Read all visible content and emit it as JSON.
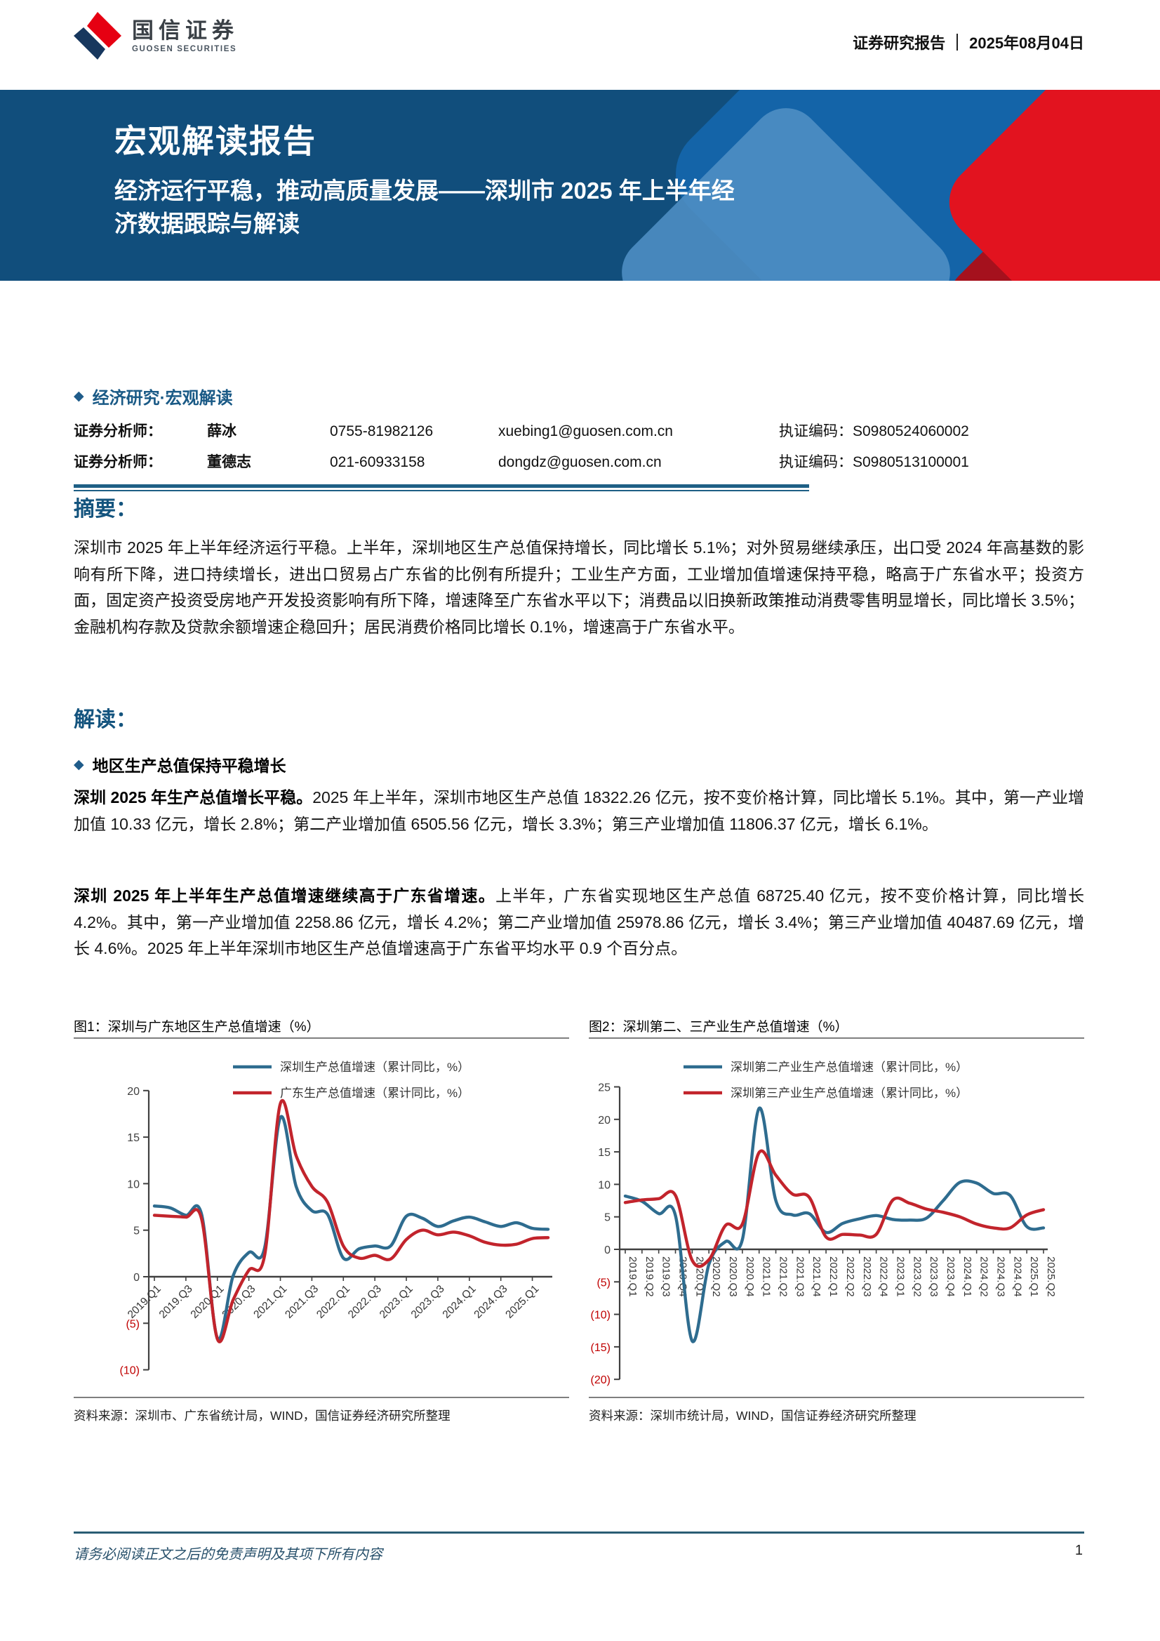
{
  "header": {
    "brand_cn": "国信证券",
    "brand_en": "GUOSEN SECURITIES",
    "report_type": "证券研究报告",
    "date": "2025年08月04日"
  },
  "banner": {
    "title": "宏观解读报告",
    "subtitle_line1": "经济运行平稳，推动高质量发展——深圳市 2025 年上半年经",
    "subtitle_line2": "济数据跟踪与解读"
  },
  "meta": {
    "section": "经济研究·宏观解读",
    "analysts": [
      {
        "role": "证券分析师：",
        "name": "薛冰",
        "phone": "0755-81982126",
        "email": "xuebing1@guosen.com.cn",
        "cert": "执证编码：S0980524060002"
      },
      {
        "role": "证券分析师：",
        "name": "董德志",
        "phone": "021-60933158",
        "email": "dongdz@guosen.com.cn",
        "cert": "执证编码：S0980513100001"
      }
    ]
  },
  "abstract": {
    "heading": "摘要：",
    "text": "深圳市 2025 年上半年经济运行平稳。上半年，深圳地区生产总值保持增长，同比增长 5.1%；对外贸易继续承压，出口受 2024 年高基数的影响有所下降，进口持续增长，进出口贸易占广东省的比例有所提升；工业生产方面，工业增加值增速保持平稳，略高于广东省水平；投资方面，固定资产投资受房地产开发投资影响有所下降，增速降至广东省水平以下；消费品以旧换新政策推动消费零售明显增长，同比增长 3.5%；金融机构存款及贷款余额增速企稳回升；居民消费价格同比增长 0.1%，增速高于广东省水平。"
  },
  "interpretation": {
    "heading": "解读：",
    "bullet": "地区生产总值保持平稳增长",
    "paragraphs": [
      {
        "lead": "深圳 2025 年生产总值增长平稳。",
        "text": "2025 年上半年，深圳市地区生产总值 18322.26 亿元，按不变价格计算，同比增长 5.1%。其中，第一产业增加值 10.33 亿元，增长 2.8%；第二产业增加值 6505.56 亿元，增长 3.3%；第三产业增加值 11806.37 亿元，增长 6.1%。"
      },
      {
        "lead": "深圳 2025 年上半年生产总值增速继续高于广东省增速。",
        "text": "上半年，广东省实现地区生产总值 68725.40 亿元，按不变价格计算，同比增长 4.2%。其中，第一产业增加值 2258.86 亿元，增长 4.2%；第二产业增加值 25978.86 亿元，增长 3.4%；第三产业增加值 40487.69 亿元，增长 4.6%。2025 年上半年深圳市地区生产总值增速高于广东省平均水平 0.9 个百分点。"
      }
    ]
  },
  "figures": [
    {
      "title": "图1：深圳与广东地区生产总值增速（%）",
      "source": "资料来源：深圳市、广东省统计局，WIND，国信证券经济研究所整理"
    },
    {
      "title": "图2：深圳第二、三产业生产总值增速（%）",
      "source": "资料来源：深圳市统计局，WIND，国信证券经济研究所整理"
    }
  ],
  "footer": {
    "disclaimer": "请务必阅读正文之后的免责声明及其项下所有内容",
    "page": "1"
  },
  "colors": {
    "banner_navy": "#114E7C",
    "banner_blue": "#1464A8",
    "banner_light_blue": "#4E8EC3",
    "banner_red": "#E2131F",
    "banner_dark_red": "#A5111D",
    "heading_blue": "#14547E",
    "chart_blue": "#2E6C8F",
    "chart_red": "#C2242C",
    "negative_tick": "#C00000",
    "axis": "#404040"
  },
  "chart_data": [
    {
      "type": "line",
      "title": "图1：深圳与广东地区生产总值增速（%）",
      "categories": [
        "2019.Q1",
        "2019.Q2",
        "2019.Q3",
        "2019.Q4",
        "2020.Q1",
        "2020.Q2",
        "2020.Q3",
        "2020.Q4",
        "2021.Q1",
        "2021.Q2",
        "2021.Q3",
        "2021.Q4",
        "2022.Q1",
        "2022.Q2",
        "2022.Q3",
        "2022.Q4",
        "2023.Q1",
        "2023.Q2",
        "2023.Q3",
        "2023.Q4",
        "2024.Q1",
        "2024.Q2",
        "2024.Q3",
        "2024.Q4",
        "2025.Q1",
        "2025.Q2"
      ],
      "series": [
        {
          "name": "深圳生产总值增速（累计同比，%）",
          "color": "#2E6C8F",
          "values": [
            7.6,
            7.4,
            6.6,
            6.7,
            -6.6,
            0.1,
            2.6,
            3.1,
            17.1,
            9.7,
            7.1,
            6.7,
            2.0,
            3.0,
            3.3,
            3.3,
            6.5,
            6.3,
            5.4,
            6.0,
            6.4,
            5.9,
            5.4,
            5.8,
            5.2,
            5.1
          ]
        },
        {
          "name": "广东生产总值增速（累计同比，%）",
          "color": "#C2242C",
          "values": [
            6.6,
            6.5,
            6.4,
            6.2,
            -6.7,
            -2.5,
            0.7,
            2.3,
            18.6,
            13.0,
            9.7,
            8.0,
            3.3,
            2.0,
            2.3,
            1.9,
            4.0,
            5.0,
            4.5,
            4.8,
            4.4,
            3.7,
            3.4,
            3.5,
            4.1,
            4.2
          ]
        }
      ],
      "ylim": [
        -10,
        20
      ],
      "ytick_step": 5,
      "x_label_every": 2,
      "x_label_style": "diagonal",
      "legend_position": "top",
      "grid": false
    },
    {
      "type": "line",
      "title": "图2：深圳第二、三产业生产总值增速（%）",
      "categories": [
        "2019.Q1",
        "2019.Q2",
        "2019.Q3",
        "2019.Q4",
        "2020.Q1",
        "2020.Q2",
        "2020.Q3",
        "2020.Q4",
        "2021.Q1",
        "2021.Q2",
        "2021.Q3",
        "2021.Q4",
        "2022.Q1",
        "2022.Q2",
        "2022.Q3",
        "2022.Q4",
        "2023.Q1",
        "2023.Q2",
        "2023.Q3",
        "2023.Q4",
        "2024.Q1",
        "2024.Q2",
        "2024.Q3",
        "2024.Q4",
        "2025.Q1",
        "2025.Q2"
      ],
      "series": [
        {
          "name": "深圳第二产业生产总值增速（累计同比，%）",
          "color": "#2E6C8F",
          "values": [
            8.2,
            7.4,
            5.5,
            5.2,
            -14.1,
            -2.3,
            1.2,
            1.5,
            21.7,
            7.5,
            5.3,
            5.5,
            2.6,
            4.0,
            4.7,
            5.2,
            4.6,
            4.5,
            4.8,
            7.5,
            10.3,
            10.2,
            8.6,
            8.3,
            3.5,
            3.3
          ]
        },
        {
          "name": "深圳第三产业生产总值增速（累计同比，%）",
          "color": "#C2242C",
          "values": [
            7.2,
            7.6,
            7.8,
            8.3,
            -1.7,
            -1.6,
            3.7,
            3.9,
            14.9,
            11.4,
            8.5,
            8.0,
            1.9,
            2.3,
            2.2,
            2.3,
            7.6,
            7.1,
            6.2,
            5.7,
            5.0,
            3.9,
            3.3,
            3.3,
            5.3,
            6.1
          ]
        }
      ],
      "ylim": [
        -20,
        25
      ],
      "ytick_step": 5,
      "x_label_every": 1,
      "x_label_style": "vertical",
      "legend_position": "top",
      "grid": false
    }
  ]
}
